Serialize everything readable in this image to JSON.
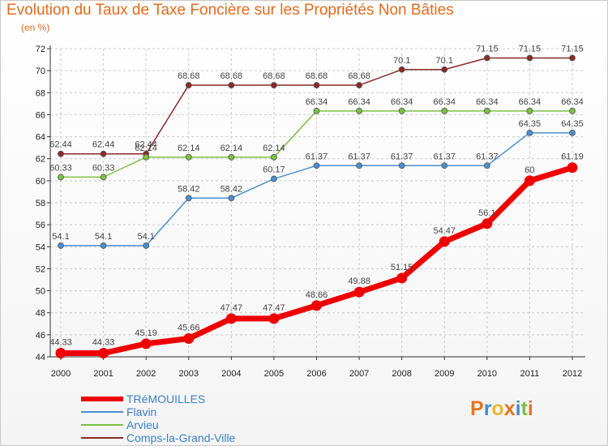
{
  "header": {
    "title": "Evolution du Taux de Taxe Foncière sur les Propriétés Non Bâties",
    "subtitle": "(en %)"
  },
  "logo": {
    "text": "Proxiti",
    "letters": [
      "P",
      "r",
      "o",
      "x",
      "i",
      "t",
      "i"
    ]
  },
  "colors": {
    "title": "#e36a1c",
    "legend_text": "#3b7fc4",
    "grid": "#cccccc",
    "axis": "#333333",
    "logo": [
      "#e8731e",
      "#3c8dd1",
      "#f0b52e",
      "#e8731e",
      "#3c8dd1",
      "#7cc142",
      "#e8731e"
    ]
  },
  "chart_data": {
    "type": "line",
    "title": "Evolution du Taux de Taxe Foncière sur les Propriétés Non Bâties",
    "ylabel": "(en %)",
    "xlabel": "",
    "categories": [
      "2000",
      "2001",
      "2002",
      "2003",
      "2004",
      "2005",
      "2006",
      "2007",
      "2008",
      "2009",
      "2010",
      "2011",
      "2012"
    ],
    "ylim": [
      44,
      72
    ],
    "yticks": [
      44,
      46,
      48,
      50,
      52,
      54,
      56,
      58,
      60,
      62,
      64,
      66,
      68,
      70,
      72
    ],
    "grid": true,
    "legend_position": "bottom-left",
    "series": [
      {
        "name": "Comps-la-Grand-Ville",
        "color": "#8b2a2a",
        "values": [
          62.44,
          62.44,
          62.44,
          68.68,
          68.68,
          68.68,
          68.68,
          68.68,
          70.1,
          70.1,
          71.15,
          71.15,
          71.15
        ],
        "labels": [
          "62.44",
          "62.44",
          "62.44",
          "68.68",
          "68.68",
          "68.68",
          "68.68",
          "68.68",
          "70.1",
          "70.1",
          "71.15",
          "71.15",
          "71.15"
        ]
      },
      {
        "name": "Arvieu",
        "color": "#7cc142",
        "values": [
          60.33,
          60.33,
          62.14,
          62.14,
          62.14,
          62.14,
          66.34,
          66.34,
          66.34,
          66.34,
          66.34,
          66.34,
          66.34
        ],
        "labels": [
          "60.33",
          "60.33",
          "62.14",
          "62.14",
          "62.14",
          "62.14",
          "66.34",
          "66.34",
          "66.34",
          "66.34",
          "66.34",
          "66.34",
          "66.34"
        ]
      },
      {
        "name": "Flavin",
        "color": "#4a8fcf",
        "values": [
          54.1,
          54.1,
          54.1,
          58.42,
          58.42,
          60.17,
          61.37,
          61.37,
          61.37,
          61.37,
          61.37,
          64.35,
          64.35
        ],
        "labels": [
          "54.1",
          "54.1",
          "54.1",
          "58.42",
          "58.42",
          "60.17",
          "61.37",
          "61.37",
          "61.37",
          "61.37",
          "61.37",
          "64.35",
          "64.35"
        ]
      },
      {
        "name": "TRéMOUILLES",
        "color": "#ee0000",
        "values": [
          44.33,
          44.33,
          45.19,
          45.66,
          47.47,
          47.47,
          48.66,
          49.88,
          51.15,
          54.47,
          56.1,
          60,
          61.19
        ],
        "labels": [
          "44.33",
          "44.33",
          "45.19",
          "45.66",
          "47.47",
          "47.47",
          "48.66",
          "49.88",
          "51.15",
          "54.47",
          "56.1",
          "60",
          "61.19"
        ]
      }
    ],
    "legend": [
      "TRéMOUILLES",
      "Flavin",
      "Arvieu",
      "Comps-la-Grand-Ville"
    ]
  }
}
